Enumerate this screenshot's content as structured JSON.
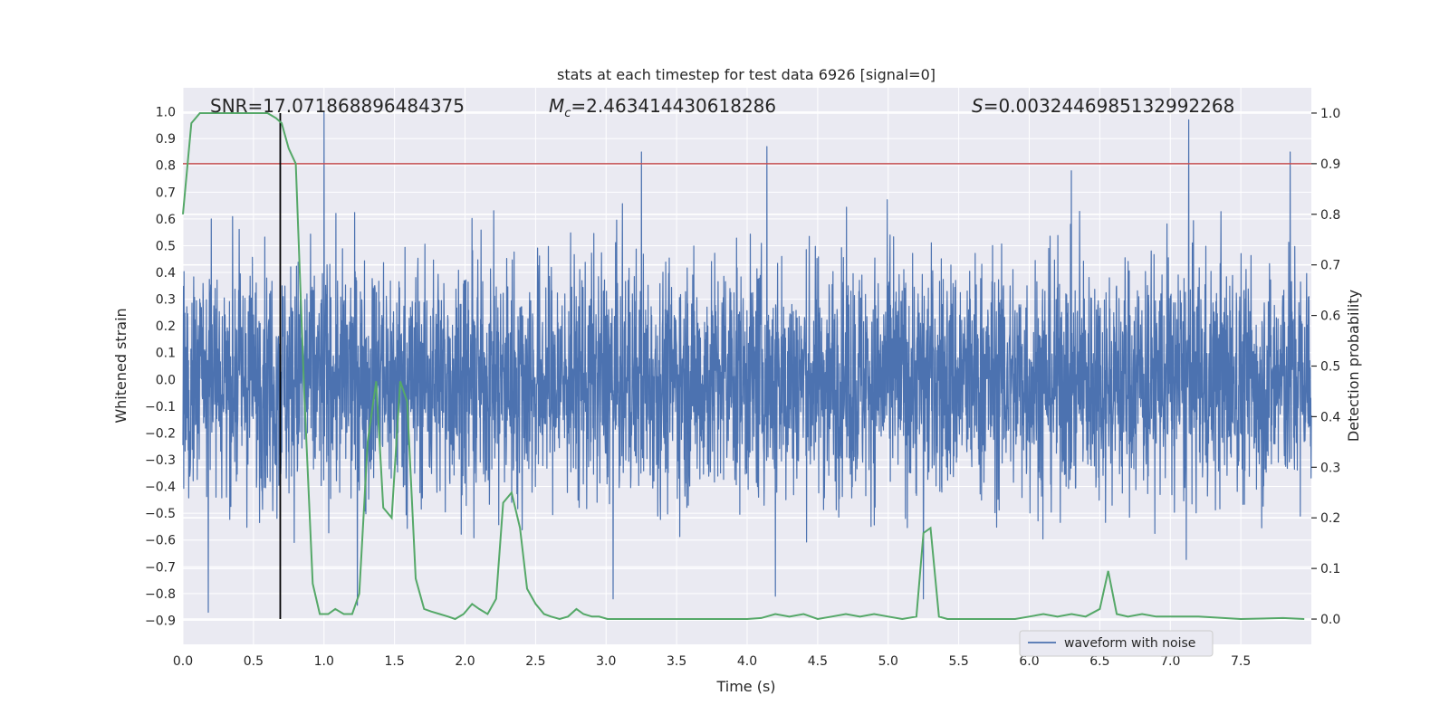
{
  "chart_data": {
    "type": "line",
    "title": "stats at each timestep for test data 6926 [signal=0]",
    "xlabel": "Time (s)",
    "ylabel": "Whitened strain",
    "y2label": "Detection probability",
    "xlim": [
      0.0,
      8.0
    ],
    "ylim": [
      -0.99,
      1.09
    ],
    "y2lim": [
      -0.05,
      1.05
    ],
    "x_ticks": [
      "0.0",
      "0.5",
      "1.0",
      "1.5",
      "2.0",
      "2.5",
      "3.0",
      "3.5",
      "4.0",
      "4.5",
      "5.0",
      "5.5",
      "6.0",
      "6.5",
      "7.0",
      "7.5"
    ],
    "y_ticks": [
      "-0.9",
      "-0.8",
      "-0.7",
      "-0.6",
      "-0.5",
      "-0.4",
      "-0.3",
      "-0.2",
      "-0.1",
      "0.0",
      "0.1",
      "0.2",
      "0.3",
      "0.4",
      "0.5",
      "0.6",
      "0.7",
      "0.8",
      "0.9",
      "1.0"
    ],
    "y2_ticks": [
      "0.0",
      "0.1",
      "0.2",
      "0.3",
      "0.4",
      "0.5",
      "0.6",
      "0.7",
      "0.8",
      "0.9",
      "1.0"
    ],
    "grid": true,
    "background": "#eaeaf2",
    "annotations": {
      "snr": "SNR=17.071868896484375",
      "mc": "=2.463414430618286",
      "s": "=0.0032446985132992268"
    },
    "threshold": {
      "axis": "right",
      "y": 0.9,
      "color": "#c44e52"
    },
    "marker_line": {
      "x": 0.69,
      "color": "#000000"
    },
    "legend": {
      "location": "lower-right",
      "entries": [
        "waveform with noise"
      ]
    },
    "series": [
      {
        "name": "waveform with noise",
        "axis": "left",
        "color": "#4c72b0",
        "sampling": "4096 samples over 0.0-8.0 s; values spanning approx -0.88 to 1.0, typical envelope +/-0.45",
        "notable_peaks": [
          {
            "x": 1.0,
            "y": 1.0
          },
          {
            "x": 3.25,
            "y": 0.85
          },
          {
            "x": 4.14,
            "y": 0.87
          },
          {
            "x": 7.13,
            "y": 0.97
          },
          {
            "x": 7.85,
            "y": 0.85
          },
          {
            "x": 0.18,
            "y": -0.87
          },
          {
            "x": 3.05,
            "y": -0.82
          },
          {
            "x": 4.2,
            "y": -0.81
          },
          {
            "x": 5.25,
            "y": -0.82
          }
        ]
      },
      {
        "name": "",
        "axis": "right",
        "color": "#55a868",
        "x": [
          0.0,
          0.06,
          0.12,
          0.18,
          0.24,
          0.3,
          0.36,
          0.42,
          0.48,
          0.54,
          0.6,
          0.66,
          0.7,
          0.75,
          0.8,
          0.86,
          0.92,
          0.97,
          1.03,
          1.08,
          1.14,
          1.2,
          1.25,
          1.31,
          1.37,
          1.42,
          1.48,
          1.54,
          1.59,
          1.65,
          1.71,
          1.76,
          1.82,
          1.88,
          1.93,
          1.99,
          2.05,
          2.1,
          2.16,
          2.22,
          2.27,
          2.33,
          2.39,
          2.44,
          2.5,
          2.56,
          2.61,
          2.67,
          2.73,
          2.79,
          2.84,
          2.9,
          2.95,
          3.01,
          3.07,
          3.12,
          3.2,
          3.3,
          3.5,
          3.8,
          4.0,
          4.1,
          4.2,
          4.3,
          4.4,
          4.5,
          4.6,
          4.7,
          4.8,
          4.9,
          5.0,
          5.1,
          5.2,
          5.25,
          5.3,
          5.36,
          5.42,
          5.5,
          5.7,
          5.9,
          6.0,
          6.1,
          6.2,
          6.3,
          6.4,
          6.5,
          6.56,
          6.62,
          6.7,
          6.8,
          6.9,
          7.0,
          7.2,
          7.5,
          7.8,
          7.95
        ],
        "y": [
          0.8,
          0.98,
          1.0,
          1.0,
          1.0,
          1.0,
          1.0,
          1.0,
          1.0,
          1.0,
          1.0,
          0.99,
          0.98,
          0.93,
          0.9,
          0.45,
          0.07,
          0.01,
          0.01,
          0.02,
          0.01,
          0.01,
          0.05,
          0.35,
          0.47,
          0.22,
          0.2,
          0.47,
          0.43,
          0.08,
          0.02,
          0.015,
          0.01,
          0.005,
          0.0,
          0.01,
          0.03,
          0.02,
          0.01,
          0.04,
          0.23,
          0.25,
          0.18,
          0.06,
          0.03,
          0.01,
          0.005,
          0.0,
          0.005,
          0.02,
          0.01,
          0.005,
          0.005,
          0.0,
          0.0,
          0.0,
          0.0,
          0.0,
          0.0,
          0.0,
          0.0,
          0.002,
          0.01,
          0.005,
          0.01,
          0.0,
          0.005,
          0.01,
          0.005,
          0.01,
          0.005,
          0.0,
          0.005,
          0.17,
          0.18,
          0.005,
          0.0,
          0.0,
          0.0,
          0.0,
          0.005,
          0.01,
          0.005,
          0.01,
          0.005,
          0.02,
          0.095,
          0.01,
          0.005,
          0.01,
          0.005,
          0.005,
          0.005,
          0.0,
          0.002,
          0.0
        ]
      }
    ]
  }
}
